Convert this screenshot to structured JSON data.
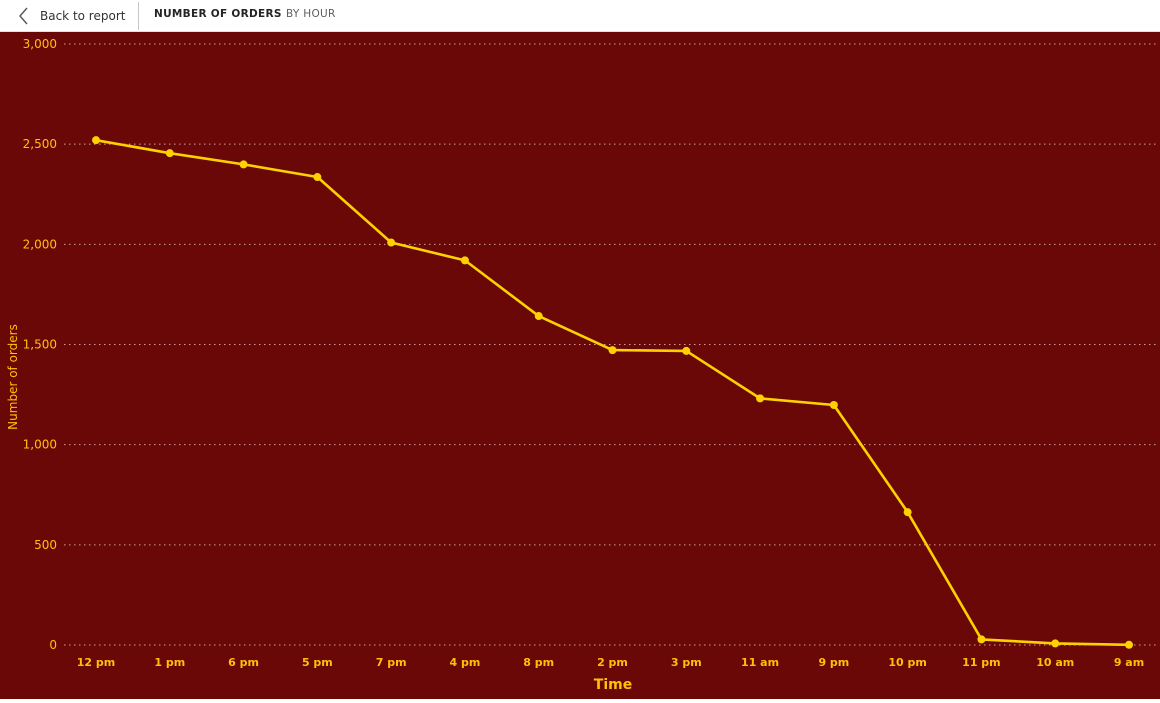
{
  "header": {
    "back_label": "Back to report",
    "title": "NUMBER OF ORDERS",
    "subtitle": "BY HOUR"
  },
  "colors": {
    "background": "#6a0808",
    "line": "#ffd100",
    "axis_text": "#ffc107",
    "gridline": "#c9a3a3"
  },
  "chart_data": {
    "type": "line",
    "title": "NUMBER OF ORDERS BY HOUR",
    "xlabel": "Time",
    "ylabel": "Number of orders",
    "categories": [
      "12 pm",
      "1 pm",
      "6 pm",
      "5 pm",
      "7 pm",
      "4 pm",
      "8 pm",
      "2 pm",
      "3 pm",
      "11 am",
      "9 pm",
      "10 pm",
      "11 pm",
      "10 am",
      "9 am"
    ],
    "series": [
      {
        "values": [
          2520,
          2455,
          2399,
          2336,
          2009,
          1920,
          1642,
          1472,
          1468,
          1231,
          1198,
          663,
          28,
          8,
          1
        ]
      }
    ],
    "yticks": [
      0,
      500,
      1000,
      1500,
      2000,
      2500,
      3000
    ],
    "ytick_labels": [
      "0",
      "500",
      "1,000",
      "1,500",
      "2,000",
      "2,500",
      "3,000"
    ],
    "ylim": [
      0,
      3000
    ],
    "grid": true,
    "legend": "none"
  }
}
